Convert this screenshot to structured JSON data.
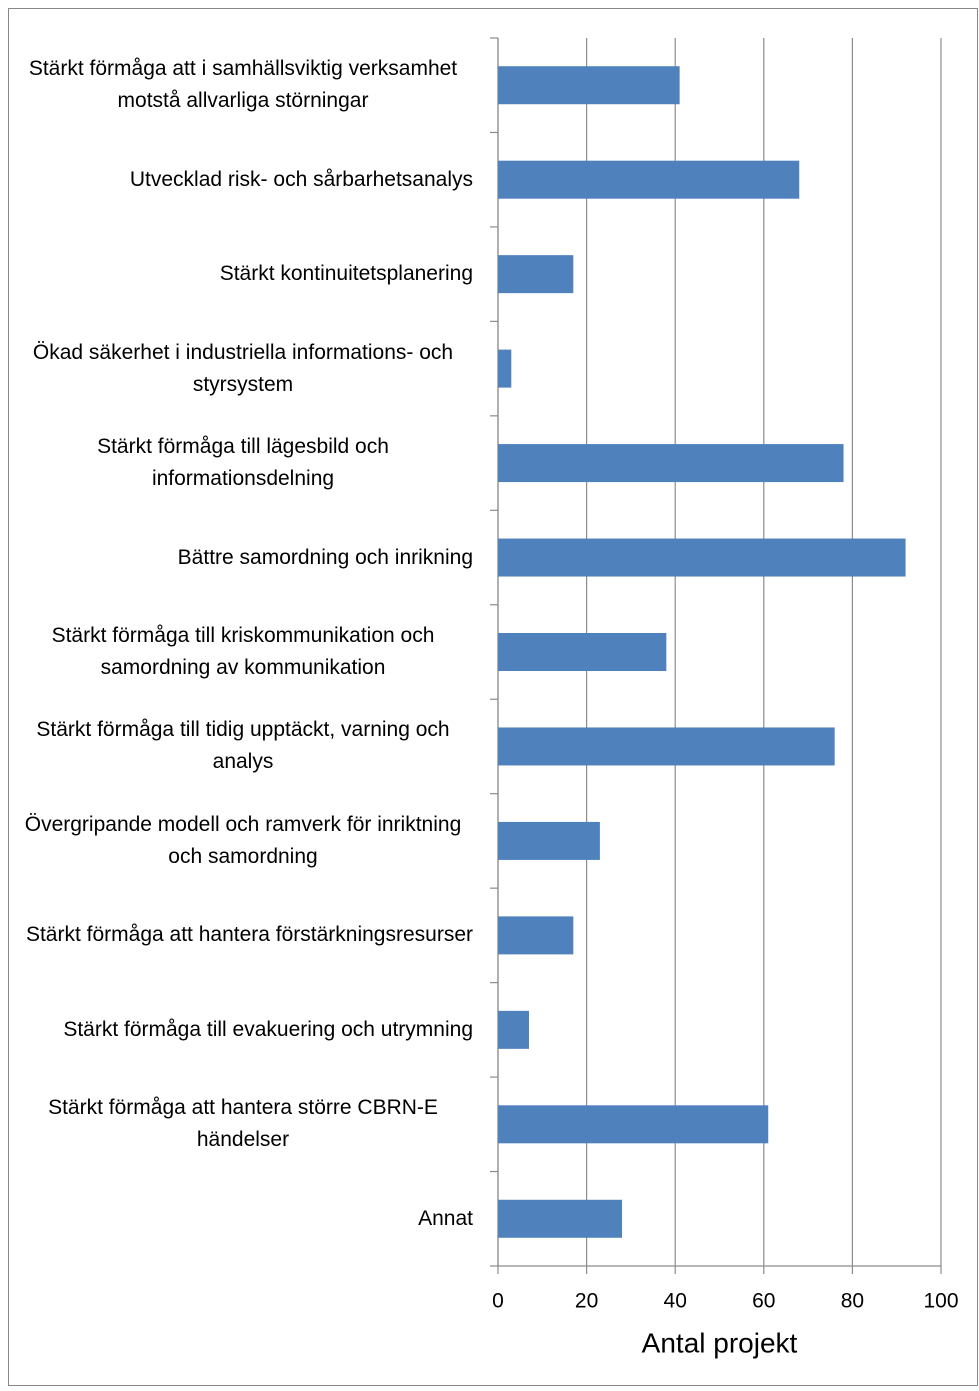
{
  "chart_data": {
    "type": "barh",
    "categories": [
      "Stärkt förmåga att i samhällsviktig verksamhet motstå allvarliga störningar",
      "Utvecklad risk- och sårbarhetsanalys",
      "Stärkt kontinuitetsplanering",
      "Ökad säkerhet i industriella informations- och styrsystem",
      "Stärkt förmåga till lägesbild och informationsdelning",
      "Bättre samordning och inrikning",
      "Stärkt förmåga till kriskommunikation och samordning av kommunikation",
      "Stärkt förmåga till tidig upptäckt, varning och analys",
      "Övergripande modell och ramverk för inriktning och samordning",
      "Stärkt förmåga att hantera förstärkningsresurser",
      "Stärkt förmåga till evakuering och utrymning",
      "Stärkt förmåga att hantera större CBRN-E händelser",
      "Annat"
    ],
    "values": [
      41,
      68,
      17,
      3,
      78,
      92,
      38,
      76,
      23,
      17,
      7,
      61,
      28
    ],
    "color": "#4f81bd",
    "xlabel": "Antal projekt",
    "xlim": [
      0,
      100
    ],
    "xticks": [
      0,
      20,
      40,
      60,
      80,
      100
    ],
    "grid": true
  }
}
